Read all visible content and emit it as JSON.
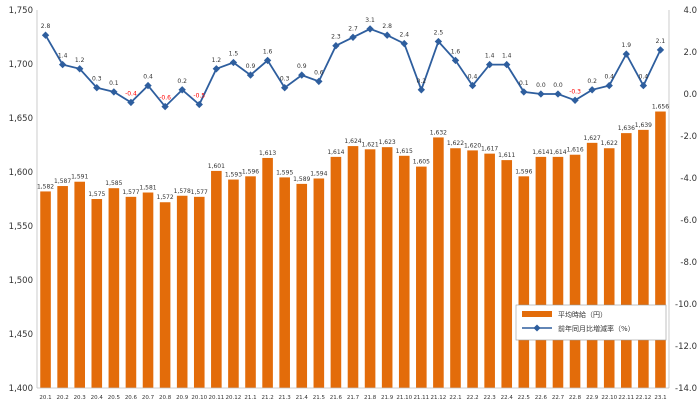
{
  "chart_data": {
    "type": "bar",
    "categories": [
      "20.1",
      "20.2",
      "20.3",
      "20.4",
      "20.5",
      "20.6",
      "20.7",
      "20.8",
      "20.9",
      "20.10",
      "20.11",
      "20.12",
      "21.1",
      "21.2",
      "21.3",
      "21.4",
      "21.5",
      "21.6",
      "21.7",
      "21.8",
      "21.9",
      "21.10",
      "21.11",
      "21.12",
      "22.1",
      "22.2",
      "22.3",
      "22.4",
      "22.5",
      "22.6",
      "22.7",
      "22.8",
      "22.9",
      "22.10",
      "22.11",
      "22.12",
      "23.1"
    ],
    "series": [
      {
        "name": "平均時給（円）",
        "type": "bar",
        "axis": "left",
        "color": "#E36C0A",
        "values": [
          1582,
          1587,
          1591,
          1575,
          1585,
          1577,
          1581,
          1572,
          1578,
          1577,
          1601,
          1593,
          1596,
          1613,
          1595,
          1589,
          1594,
          1614,
          1624,
          1621,
          1623,
          1615,
          1605,
          1632,
          1622,
          1620,
          1617,
          1611,
          1596,
          1614,
          1614,
          1616,
          1627,
          1622,
          1636,
          1639,
          1656
        ]
      },
      {
        "name": "前年同月比増減率（%）",
        "type": "line",
        "axis": "right",
        "color": "#2E5E9E",
        "values": [
          2.8,
          1.4,
          1.2,
          0.3,
          0.1,
          -0.4,
          0.4,
          -0.6,
          0.2,
          -0.5,
          1.2,
          1.5,
          0.9,
          1.6,
          0.3,
          0.9,
          0.6,
          2.3,
          2.7,
          3.1,
          2.8,
          2.4,
          0.2,
          2.5,
          1.6,
          0.4,
          1.4,
          1.4,
          0.1,
          0.0,
          0.0,
          -0.3,
          0.2,
          0.4,
          1.9,
          0.4,
          2.1
        ]
      }
    ],
    "left_ylim": [
      1400,
      1750
    ],
    "left_ticks": [
      "1,400",
      "1,450",
      "1,500",
      "1,550",
      "1,600",
      "1,650",
      "1,700",
      "1,750"
    ],
    "right_ylim": [
      -14.0,
      4.0
    ],
    "right_ticks": [
      "-14.0",
      "-12.0",
      "-10.0",
      "-8.0",
      "-6.0",
      "-4.0",
      "-2.0",
      "0.0",
      "2.0",
      "4.0"
    ],
    "negative_label_color": "#FF0000",
    "legend_position": "lower-right",
    "grid": false
  }
}
